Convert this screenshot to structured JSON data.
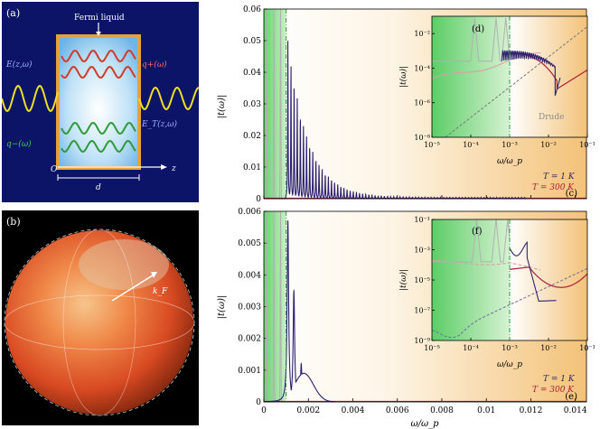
{
  "figure": {
    "panel_a": {
      "label": "(a)",
      "title": "Fermi liquid",
      "E_label": "E(z,ω)",
      "Et_label": "E_T(z,ω)",
      "q_plus": "q+(ω)",
      "q_minus": "q−(ω)",
      "origin": "O",
      "z_label": "z",
      "d_label": "d",
      "colors": {
        "bg": "#0b1466",
        "slab": "#9fd0f2",
        "frame": "#e5a23c",
        "incident": "#f0e020",
        "red_wave": "#d23a2a",
        "green_wave": "#2e9a3a"
      }
    },
    "panel_b": {
      "label": "(b)",
      "kF_label": "k_F",
      "colors": {
        "sphere": "#e8562c",
        "highlight": "#f4c38a"
      }
    },
    "panel_c": {
      "label": "(c)",
      "legend_T1": "T = 1 K",
      "legend_T300": "T = 300 K"
    },
    "panel_d": {
      "label": "(d)",
      "drude": "Drude"
    },
    "panel_e": {
      "label": "(e)",
      "legend_T1": "T = 1 K",
      "legend_T300": "T = 300 K"
    },
    "panel_f": {
      "label": "(f)"
    }
  },
  "chart_data": [
    {
      "id": "c",
      "type": "line",
      "ylabel": "|t(ω)|",
      "xlim": [
        0,
        0.0145
      ],
      "ylim": [
        0,
        0.06
      ],
      "yticks": [
        0,
        0.01,
        0.02,
        0.03,
        0.04,
        0.05,
        0.06
      ],
      "ytick_labels": [
        "0",
        "0.01",
        "0.02",
        "0.03",
        "0.04",
        "0.05",
        "0.06"
      ],
      "vline_x": 0.001,
      "series": [
        {
          "name": "T = 1 K",
          "color": "#2a1f6e",
          "params": {
            "x0": 0.00108,
            "spacing": 0.00014,
            "peak": 0.05,
            "decay": 0.0009,
            "width": 1.2e-05,
            "floor": 0.0004,
            "end": 0.0118
          }
        },
        {
          "name": "T = 300 K",
          "color": "#b01a3a"
        },
        {
          "name": "gray",
          "color": "#b0b0b0",
          "params": {
            "peaks": [
              0.00012,
              0.00045,
              0.00075
            ],
            "peak": 0.06
          }
        }
      ]
    },
    {
      "id": "e",
      "type": "line",
      "xlabel": "ω/ω_p",
      "ylabel": "|t(ω)|",
      "xlim": [
        0,
        0.0145
      ],
      "ylim": [
        0,
        0.006
      ],
      "xticks": [
        0,
        0.002,
        0.004,
        0.006,
        0.008,
        0.01,
        0.012,
        0.014
      ],
      "xtick_labels": [
        "0",
        "0.002",
        "0.004",
        "0.006",
        "0.008",
        "0.01",
        "0.012",
        "0.014"
      ],
      "yticks": [
        0,
        0.001,
        0.002,
        0.003,
        0.004,
        0.005,
        0.006
      ],
      "ytick_labels": [
        "0",
        "0.001",
        "0.002",
        "0.003",
        "0.004",
        "0.005",
        "0.006"
      ],
      "vline_x": 0.001,
      "series": [
        {
          "name": "T = 1 K",
          "color": "#2a1f6e",
          "params": {
            "peaks": [
              0.00108,
              0.00135,
              0.00168
            ],
            "heights": [
              0.0057,
              0.0035,
              0.0012
            ],
            "end": 0.0032
          }
        },
        {
          "name": "T = 300 K",
          "color": "#b01a3a"
        },
        {
          "name": "gray",
          "color": "#b0b0b0",
          "params": {
            "peaks": [
              0.00012,
              0.00045,
              0.00075
            ],
            "peak": 0.006
          }
        }
      ]
    },
    {
      "id": "d",
      "type": "line",
      "xscale": "log",
      "yscale": "log",
      "xlabel": "ω/ω_p",
      "ylabel": "|t(ω)|",
      "xlim_exp": [
        -5,
        -1
      ],
      "ylim_exp": [
        -8,
        -1
      ],
      "xtick_labels": [
        "10^-5",
        "10^-4",
        "10^-3",
        "10^-2",
        "10^-1"
      ],
      "ytick_labels": [
        "10^-8",
        "10^-6",
        "10^-4",
        "10^-2"
      ],
      "vline_exp": -3,
      "dip_exp": -1.78
    },
    {
      "id": "f",
      "type": "line",
      "xscale": "log",
      "yscale": "log",
      "xlabel": "ω/ω_p",
      "ylabel": "|t(ω)|",
      "xlim_exp": [
        -5,
        -1
      ],
      "ylim_exp": [
        -9,
        -1
      ],
      "xtick_labels": [
        "10^-5",
        "10^-4",
        "10^-3",
        "10^-2",
        "10^-1"
      ],
      "ytick_labels": [
        "10^-9",
        "10^-7",
        "10^-5",
        "10^-3",
        "10^-1"
      ],
      "vline_exp": -3
    }
  ]
}
